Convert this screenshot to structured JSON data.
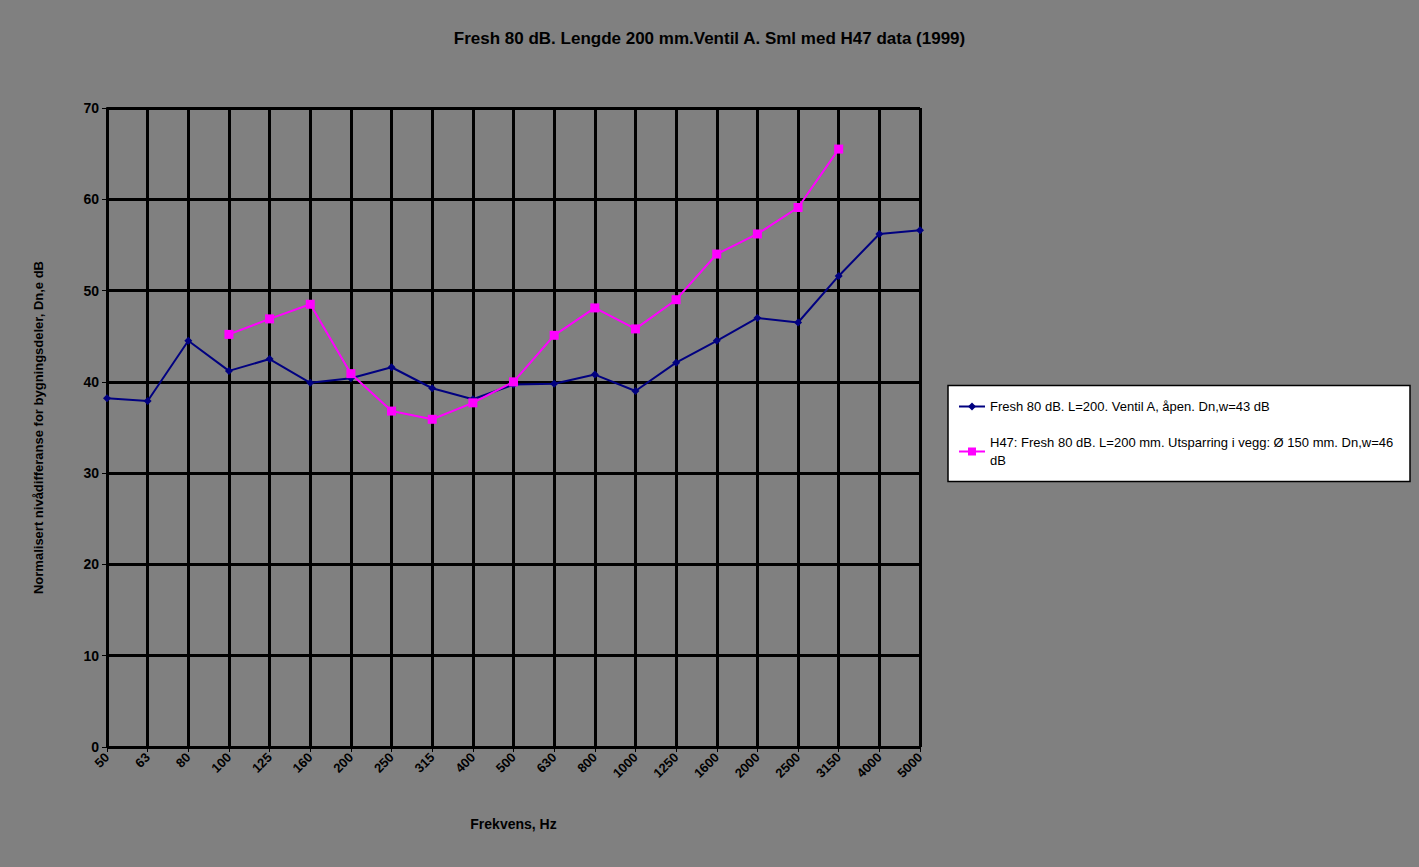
{
  "chart_data": {
    "type": "line",
    "title": "Fresh 80 dB. Lengde 200 mm.Ventil A. Sml med H47 data (1999)",
    "x_label": "Frekvens, Hz",
    "y_label": "Normalisert nivådifferanse for bygningsdeler, Dn,e dB",
    "categories": [
      "50",
      "63",
      "80",
      "100",
      "125",
      "160",
      "200",
      "250",
      "315",
      "400",
      "500",
      "630",
      "800",
      "1000",
      "1250",
      "1600",
      "2000",
      "2500",
      "3150",
      "4000",
      "5000"
    ],
    "series": [
      {
        "name": "Fresh 80 dB. L=200. Ventil A, åpen. Dn,w=43 dB",
        "color": "#000080",
        "marker": "diamond",
        "line_style": "solid",
        "values": [
          38.2,
          37.9,
          44.5,
          41.2,
          42.5,
          39.9,
          40.4,
          41.6,
          39.3,
          38.1,
          39.7,
          39.8,
          40.8,
          39.0,
          42.1,
          44.5,
          47.0,
          46.5,
          51.6,
          56.2,
          56.6
        ]
      },
      {
        "name": "H47: Fresh 80 dB. L=200 mm. Utsparring i vegg: Ø 150 mm. Dn,w=46 dB",
        "color": "#ff00ff",
        "marker": "square",
        "line_style": "solid",
        "values": [
          null,
          null,
          null,
          45.2,
          46.9,
          48.5,
          40.9,
          36.8,
          35.9,
          37.7,
          40.0,
          45.1,
          48.1,
          45.8,
          49.0,
          54.0,
          56.2,
          59.1,
          65.5,
          null,
          null
        ]
      }
    ],
    "ylim": [
      0,
      70
    ],
    "yticks": [
      0,
      10,
      20,
      30,
      40,
      50,
      60,
      70
    ],
    "grid": true,
    "legend": "right"
  }
}
